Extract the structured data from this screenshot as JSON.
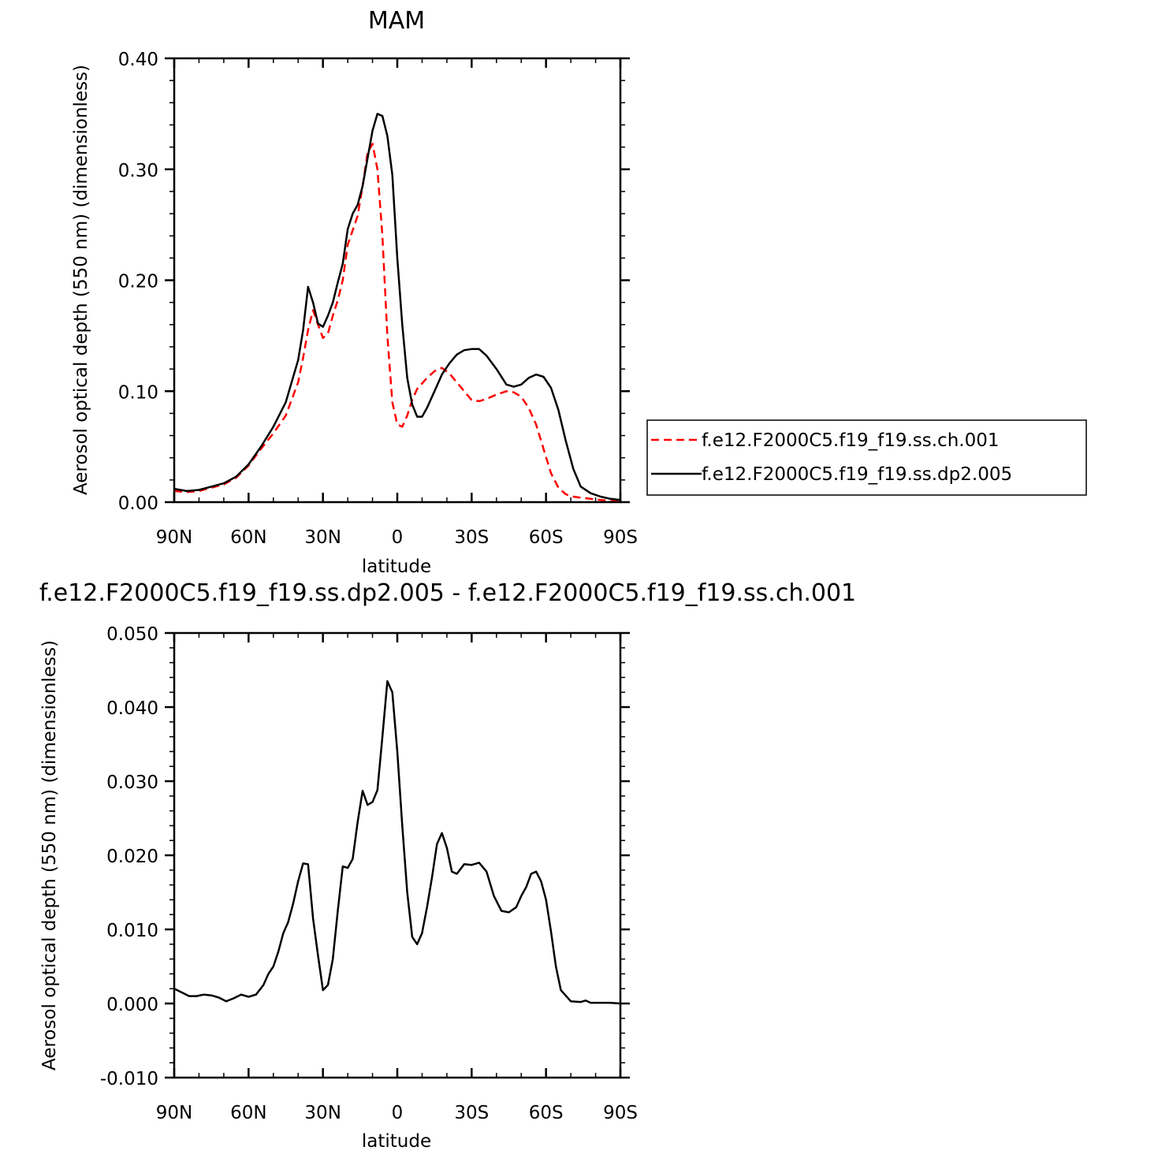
{
  "chart_data": [
    {
      "type": "line",
      "title": "MAM",
      "xlabel": "latitude",
      "ylabel": "Aerosol optical depth (550 nm) (dimensionless)",
      "xlim": [
        90,
        -90
      ],
      "ylim": [
        0,
        0.4
      ],
      "xticks": [
        90,
        60,
        30,
        0,
        -30,
        -60,
        -90
      ],
      "xticklabels": [
        "90N",
        "60N",
        "30N",
        "0",
        "30S",
        "60S",
        "90S"
      ],
      "yticks": [
        0,
        0.1,
        0.2,
        0.3,
        0.4
      ],
      "yticklabels": [
        "0.00",
        "0.10",
        "0.20",
        "0.30",
        "0.40"
      ],
      "legend_position": "right",
      "series": [
        {
          "name": "f.e12.F2000C5.f19_f19.ss.ch.001",
          "color": "#ff0000",
          "dash": "dashed",
          "x": [
            90,
            85,
            80,
            75,
            70,
            65,
            60,
            55,
            50,
            45,
            40,
            38,
            36,
            34,
            32,
            30,
            28,
            26,
            24,
            22,
            20,
            18,
            16,
            14,
            12,
            10,
            8,
            6,
            4,
            2,
            0,
            -2,
            -4,
            -6,
            -8,
            -10,
            -12,
            -15,
            -18,
            -21,
            -24,
            -27,
            -30,
            -33,
            -36,
            -40,
            -44,
            -47,
            -50,
            -53,
            -56,
            -59,
            -62,
            -65,
            -68,
            -71,
            -74,
            -78,
            -82,
            -86,
            -90
          ],
          "y": [
            0.01,
            0.009,
            0.01,
            0.013,
            0.016,
            0.022,
            0.033,
            0.048,
            0.062,
            0.078,
            0.108,
            0.13,
            0.155,
            0.173,
            0.16,
            0.148,
            0.152,
            0.168,
            0.182,
            0.2,
            0.232,
            0.245,
            0.258,
            0.285,
            0.315,
            0.323,
            0.3,
            0.24,
            0.15,
            0.09,
            0.07,
            0.068,
            0.078,
            0.092,
            0.102,
            0.107,
            0.112,
            0.118,
            0.121,
            0.116,
            0.108,
            0.1,
            0.092,
            0.091,
            0.093,
            0.097,
            0.1,
            0.099,
            0.095,
            0.085,
            0.07,
            0.048,
            0.026,
            0.013,
            0.007,
            0.005,
            0.004,
            0.003,
            0.002,
            0.001,
            0.001
          ]
        },
        {
          "name": "f.e12.F2000C5.f19_f19.ss.dp2.005",
          "color": "#000000",
          "dash": "solid",
          "x": [
            90,
            85,
            80,
            75,
            70,
            65,
            60,
            55,
            50,
            45,
            40,
            38,
            36,
            34,
            32,
            30,
            28,
            26,
            24,
            22,
            20,
            18,
            16,
            14,
            12,
            10,
            8,
            6,
            4,
            2,
            0,
            -2,
            -4,
            -6,
            -8,
            -10,
            -12,
            -15,
            -18,
            -21,
            -24,
            -27,
            -30,
            -33,
            -36,
            -40,
            -44,
            -47,
            -50,
            -53,
            -56,
            -59,
            -62,
            -65,
            -68,
            -71,
            -74,
            -78,
            -82,
            -86,
            -90
          ],
          "y": [
            0.012,
            0.01,
            0.011,
            0.014,
            0.017,
            0.023,
            0.034,
            0.05,
            0.068,
            0.09,
            0.128,
            0.155,
            0.194,
            0.18,
            0.161,
            0.158,
            0.168,
            0.18,
            0.198,
            0.215,
            0.246,
            0.26,
            0.268,
            0.285,
            0.31,
            0.335,
            0.35,
            0.348,
            0.33,
            0.295,
            0.22,
            0.16,
            0.112,
            0.088,
            0.077,
            0.077,
            0.085,
            0.1,
            0.115,
            0.125,
            0.133,
            0.137,
            0.138,
            0.138,
            0.132,
            0.12,
            0.106,
            0.104,
            0.106,
            0.112,
            0.115,
            0.113,
            0.103,
            0.083,
            0.055,
            0.03,
            0.014,
            0.008,
            0.005,
            0.003,
            0.002
          ]
        }
      ]
    },
    {
      "type": "line",
      "title": "f.e12.F2000C5.f19_f19.ss.dp2.005 - f.e12.F2000C5.f19_f19.ss.ch.001",
      "xlabel": "latitude",
      "ylabel": "Aerosol optical depth (550 nm) (dimensionless)",
      "xlim": [
        90,
        -90
      ],
      "ylim": [
        -0.01,
        0.05
      ],
      "xticks": [
        90,
        60,
        30,
        0,
        -30,
        -60,
        -90
      ],
      "xticklabels": [
        "90N",
        "60N",
        "30N",
        "0",
        "30S",
        "60S",
        "90S"
      ],
      "yticks": [
        -0.01,
        0,
        0.01,
        0.02,
        0.03,
        0.04,
        0.05
      ],
      "yticklabels": [
        "-0.010",
        "0.000",
        "0.010",
        "0.020",
        "0.030",
        "0.040",
        "0.050"
      ],
      "series": [
        {
          "color": "#000000",
          "dash": "solid",
          "x": [
            90,
            87,
            84,
            81,
            78,
            75,
            72,
            69,
            66,
            63,
            60,
            57,
            54,
            52,
            50,
            48,
            46,
            44,
            42,
            40,
            38,
            36,
            34,
            32,
            30,
            28,
            26,
            24,
            22,
            20,
            18,
            16,
            14,
            12,
            10,
            8,
            6,
            4,
            2,
            0,
            -2,
            -4,
            -6,
            -8,
            -10,
            -12,
            -14,
            -16,
            -18,
            -20,
            -22,
            -24,
            -27,
            -30,
            -33,
            -36,
            -39,
            -42,
            -45,
            -48,
            -50,
            -52,
            -54,
            -56,
            -58,
            -60,
            -62,
            -64,
            -66,
            -70,
            -74,
            -76,
            -78,
            -82,
            -86,
            -90
          ],
          "y": [
            0.002,
            0.0015,
            0.001,
            0.001,
            0.0012,
            0.0011,
            0.0008,
            0.0003,
            0.0007,
            0.0012,
            0.0009,
            0.0012,
            0.0025,
            0.004,
            0.005,
            0.007,
            0.0095,
            0.011,
            0.0135,
            0.0165,
            0.0189,
            0.0188,
            0.0115,
            0.0065,
            0.0018,
            0.0025,
            0.006,
            0.0125,
            0.0185,
            0.0183,
            0.0195,
            0.0245,
            0.0287,
            0.0268,
            0.0272,
            0.0288,
            0.036,
            0.0435,
            0.042,
            0.034,
            0.024,
            0.015,
            0.009,
            0.008,
            0.0095,
            0.013,
            0.017,
            0.0215,
            0.023,
            0.021,
            0.0178,
            0.0175,
            0.0188,
            0.0187,
            0.019,
            0.0178,
            0.0145,
            0.0125,
            0.0123,
            0.013,
            0.0145,
            0.0157,
            0.0175,
            0.0178,
            0.0165,
            0.014,
            0.0097,
            0.005,
            0.0018,
            0.0003,
            0.0002,
            0.0004,
            0.0001,
            0.0001,
            0.0001,
            0.0
          ]
        }
      ]
    }
  ]
}
